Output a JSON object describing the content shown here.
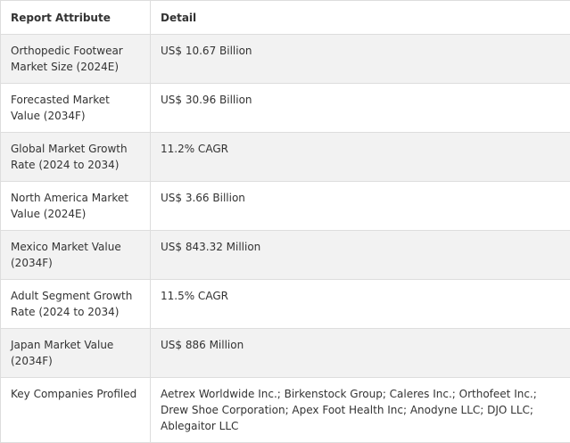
{
  "table": {
    "headers": [
      "Report Attribute",
      "Detail"
    ],
    "rows": [
      {
        "attribute": "Orthopedic Footwear Market Size (2024E)",
        "detail": "US$ 10.67 Billion"
      },
      {
        "attribute": "Forecasted Market Value (2034F)",
        "detail": "US$ 30.96 Billion"
      },
      {
        "attribute": "Global Market Growth Rate (2024 to 2034)",
        "detail": "11.2% CAGR"
      },
      {
        "attribute": "North America Market Value (2024E)",
        "detail": "US$ 3.66 Billion"
      },
      {
        "attribute": "Mexico Market Value (2034F)",
        "detail": "US$ 843.32 Million"
      },
      {
        "attribute": "Adult Segment Growth Rate (2024 to 2034)",
        "detail": "11.5% CAGR"
      },
      {
        "attribute": "Japan Market Value (2034F)",
        "detail": "US$ 886 Million"
      },
      {
        "attribute": "Key Companies Profiled",
        "detail": "Aetrex Worldwide Inc.; Birkenstock Group; Caleres Inc.; Orthofeet Inc.; Drew Shoe Corporation; Apex Foot Health Inc; Anodyne LLC; DJO LLC; Ablegaitor LLC"
      }
    ]
  }
}
